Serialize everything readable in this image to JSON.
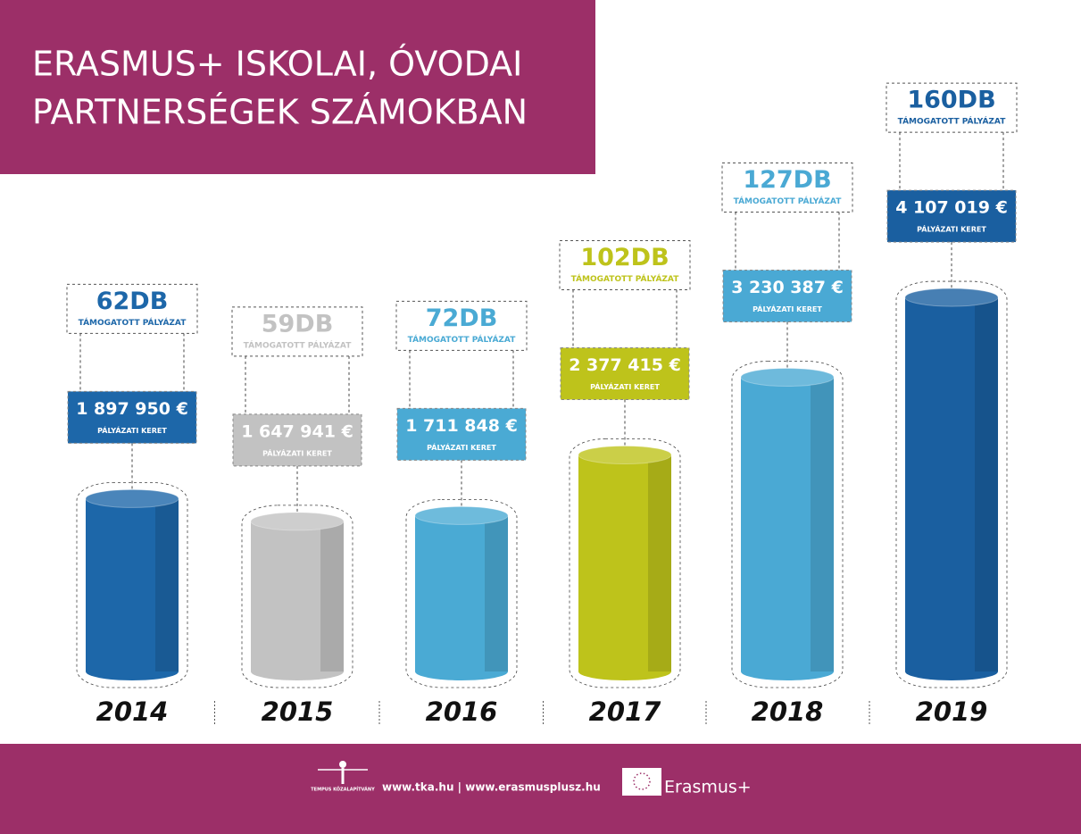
{
  "chart_data": {
    "type": "bar",
    "title_lines": [
      "ERASMUS+  ISKOLAI, ÓVODAI",
      "PARTNERSÉGEK SZÁMOKBAN"
    ],
    "categories": [
      "2014",
      "2015",
      "2016",
      "2017",
      "2018",
      "2019"
    ],
    "values": [
      1897950,
      1647941,
      1711848,
      2377415,
      3230387,
      4107019
    ],
    "value_labels": [
      "1 897 950 €",
      "1 647 941 €",
      "1 711 848 €",
      "2 377 415 €",
      "3 230 387 €",
      "4 107 019 €"
    ],
    "value_caption": "PÁLYÁZATI KERET",
    "counts": [
      62,
      59,
      72,
      102,
      127,
      160
    ],
    "count_labels": [
      "62DB",
      "59DB",
      "72DB",
      "102DB",
      "127DB",
      "160DB"
    ],
    "count_caption": "TÁMOGATOTT PÁLYÁZAT",
    "colors": [
      "#1d67a9",
      "#c2c2c2",
      "#4aaad4",
      "#bec31b",
      "#4aa9d4",
      "#1a5fa0"
    ],
    "footer": {
      "org": "TEMPUS KÖZALAPÍTVÁNY",
      "links": "www.tka.hu | www.erasmusplusz.hu",
      "brand": "Erasmus+"
    }
  }
}
